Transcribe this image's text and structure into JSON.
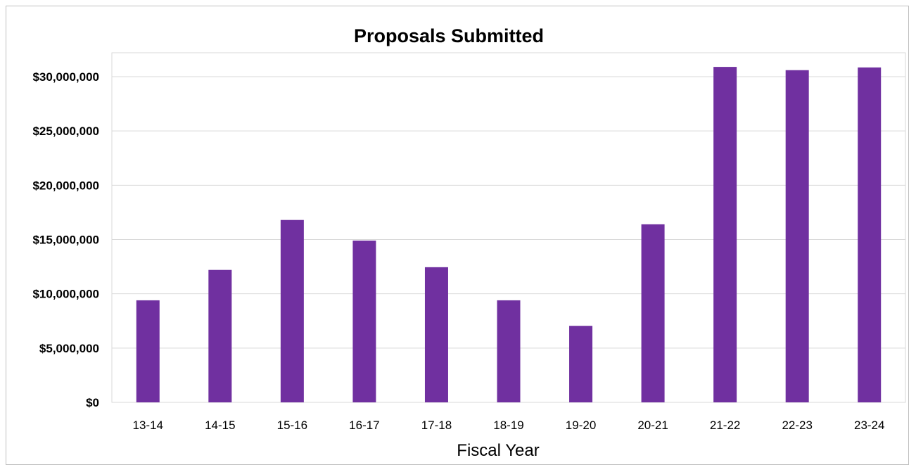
{
  "colors": {
    "bar": "#7030a0",
    "grid": "#d9d9d9",
    "plot_border": "#d9d9d9",
    "frame_border": "#bfbfbf"
  },
  "chart_data": {
    "type": "bar",
    "title": "Proposals Submitted",
    "xlabel": "Fiscal Year",
    "ylabel": "",
    "categories": [
      "13-14",
      "14-15",
      "15-16",
      "16-17",
      "17-18",
      "18-19",
      "19-20",
      "20-21",
      "21-22",
      "22-23",
      "23-24"
    ],
    "values": [
      9400000,
      12200000,
      16800000,
      14900000,
      12450000,
      9400000,
      7050000,
      16400000,
      30900000,
      30600000,
      30850000
    ],
    "ylim": [
      0,
      32000000
    ],
    "yticks": [
      0,
      5000000,
      10000000,
      15000000,
      20000000,
      25000000,
      30000000
    ],
    "ytick_labels": [
      "$0",
      "$5,000,000",
      "$10,000,000",
      "$15,000,000",
      "$20,000,000",
      "$25,000,000",
      "$30,000,000"
    ],
    "grid": true,
    "legend": "none"
  }
}
